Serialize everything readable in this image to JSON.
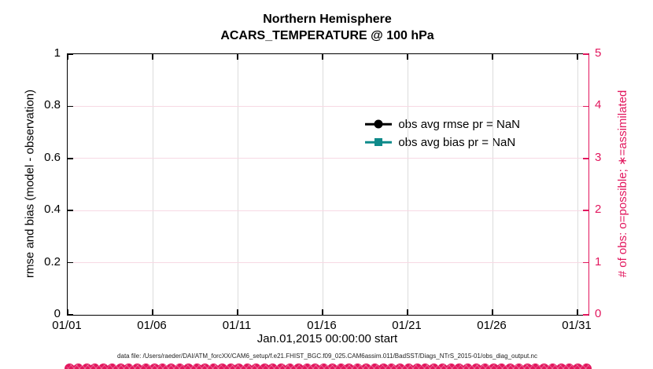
{
  "title": {
    "line1": "Northern Hemisphere",
    "line2": "ACARS_TEMPERATURE @ 100 hPa"
  },
  "axes": {
    "left": {
      "label": "rmse and bias (model - observation)",
      "ticks": [
        "0",
        "0.2",
        "0.4",
        "0.6",
        "0.8",
        "1"
      ],
      "range": [
        0,
        1
      ],
      "color": "#000000"
    },
    "right": {
      "label": "# of obs: o=possible; ∗=assimilated",
      "ticks": [
        "0",
        "1",
        "2",
        "3",
        "4",
        "5"
      ],
      "range": [
        0,
        5
      ],
      "color": "#E2175E"
    },
    "x": {
      "label": "Jan.01,2015 00:00:00 start",
      "ticks": [
        "01/01",
        "01/06",
        "01/11",
        "01/16",
        "01/21",
        "01/26",
        "01/31"
      ]
    }
  },
  "legend": [
    {
      "label": "obs avg rmse pr = NaN",
      "color": "#000000",
      "marker": "circle"
    },
    {
      "label": "obs avg bias pr = NaN",
      "color": "#0E8A8A",
      "marker": "square"
    }
  ],
  "footer": {
    "data_file": "data file: /Users/raeder/DAI/ATM_forcXX/CAM6_setup/f.e21.FHIST_BGC.f09_025.CAM6assim.011/BadSST/Diags_NTrS_2015-01/obs_diag_output.nc"
  },
  "chart_data": {
    "type": "line",
    "title": "Northern Hemisphere",
    "subtitle": "ACARS_TEMPERATURE @ 100 hPa",
    "xlabel": "Jan.01,2015 00:00:00 start",
    "ylabel_left": "rmse and bias (model - observation)",
    "ylabel_right": "# of obs: o=possible; ∗=assimilated",
    "x_tick_labels": [
      "01/01",
      "01/06",
      "01/11",
      "01/16",
      "01/21",
      "01/26",
      "01/31"
    ],
    "ylim_left": [
      0,
      1
    ],
    "ylim_right": [
      0,
      5
    ],
    "grid": true,
    "legend_position": "upper right inside, no box",
    "series": [
      {
        "name": "obs avg rmse pr = NaN",
        "axis": "left",
        "color": "#000000",
        "marker": "circle",
        "values": "all NaN — no curve drawn"
      },
      {
        "name": "obs avg bias pr = NaN",
        "axis": "left",
        "color": "#0E8A8A",
        "marker": "square",
        "values": "all NaN — no curve drawn"
      },
      {
        "name": "# of obs possible (o)",
        "axis": "right",
        "color": "#E2175E",
        "marker": "circle",
        "constant_value": 0,
        "n_points": 62
      },
      {
        "name": "# of obs assimilated (∗)",
        "axis": "right",
        "color": "#E2175E",
        "marker": "asterisk",
        "constant_value": 0,
        "n_points": 62
      }
    ]
  }
}
